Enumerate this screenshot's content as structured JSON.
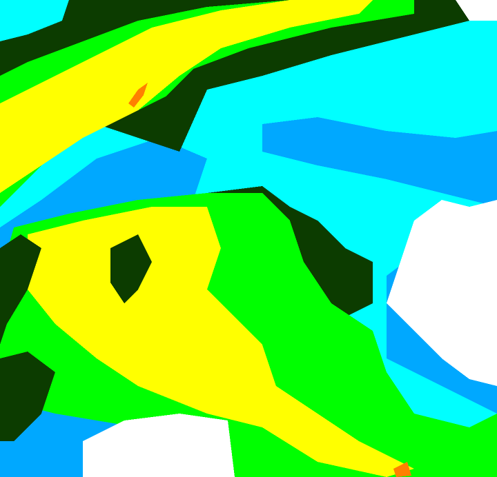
{
  "image": {
    "kind": "color-coded radar/satellite intensity field",
    "palette": {
      "white": "#ffffff",
      "cyan": "#00ffff",
      "blue": "#00a8ff",
      "dark_green": "#0c3c00",
      "green": "#00ff00",
      "yellow": "#ffff00",
      "orange": "#ff8000",
      "red": "#ff2000"
    }
  }
}
